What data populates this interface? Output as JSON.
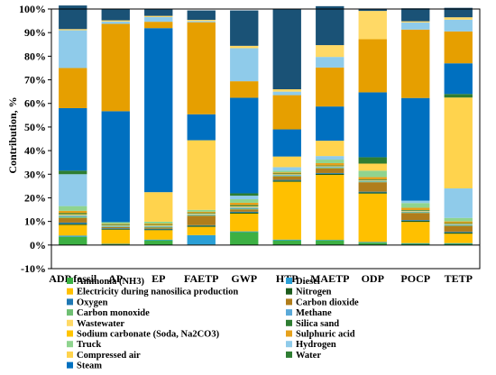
{
  "chart_data": {
    "type": "bar",
    "stacked": true,
    "ylabel": "Contribution, %",
    "ylim": [
      -10,
      100
    ],
    "yticks": [
      -10,
      0,
      10,
      20,
      30,
      40,
      50,
      60,
      70,
      80,
      90,
      100
    ],
    "ytick_labels": [
      "-10%",
      "0%",
      "10%",
      "20%",
      "30%",
      "40%",
      "50%",
      "60%",
      "70%",
      "80%",
      "90%",
      "100%"
    ],
    "grid": false,
    "legend_position": "bottom",
    "categories": [
      "ADP fossil",
      "AP",
      "EP",
      "FAETP",
      "GWP",
      "HTP",
      "MAETP",
      "ODP",
      "POCP",
      "TETP"
    ],
    "series": [
      {
        "name": "Ammonia (NH3)",
        "color": "#3cb043",
        "values": [
          3.5,
          0.3,
          2,
          0.2,
          5.5,
          2,
          2,
          1,
          0.5,
          0.5
        ]
      },
      {
        "name": "Diesel",
        "color": "#2a9fd6",
        "values": [
          0.5,
          0.2,
          0.3,
          4,
          0.3,
          0.3,
          0.2,
          0.3,
          0.3,
          0.3
        ]
      },
      {
        "name": "Electricity during nanosilica production",
        "color": "#ffc000",
        "values": [
          4.5,
          6,
          4,
          3.5,
          7.5,
          24.5,
          27.5,
          20.5,
          9,
          4
        ]
      },
      {
        "name": "Nitrogen",
        "color": "#1d5c1d",
        "values": [
          0.5,
          0.3,
          0.3,
          0.5,
          0.5,
          0.5,
          0.5,
          0.5,
          0.5,
          0.5
        ]
      },
      {
        "name": "Oxygen",
        "color": "#1f78b4",
        "values": [
          0.5,
          0.3,
          0.3,
          0.2,
          0.3,
          0.3,
          0.3,
          0.3,
          0.3,
          0.3
        ]
      },
      {
        "name": "Carbon dioxide",
        "color": "#b07d1b",
        "values": [
          2,
          0.5,
          0.5,
          4,
          1,
          1.5,
          2,
          4,
          3,
          2.5
        ]
      },
      {
        "name": "Carbon monoxide",
        "color": "#6fbf73",
        "values": [
          0.5,
          0.2,
          0.3,
          0.3,
          0.3,
          0.3,
          0.3,
          0.3,
          0.3,
          0.3
        ]
      },
      {
        "name": "Methane",
        "color": "#5aa9d8",
        "values": [
          0.5,
          0.3,
          0.3,
          0.3,
          0.5,
          0.3,
          0.3,
          0.3,
          0.3,
          0.3
        ]
      },
      {
        "name": "Wastewater",
        "color": "#ffd966",
        "values": [
          0.5,
          0.3,
          0.3,
          0.3,
          0.5,
          0.3,
          0.3,
          0.3,
          0.3,
          0.3
        ]
      },
      {
        "name": "Silica sand",
        "color": "#2e7d32",
        "values": [
          0.5,
          0.3,
          0.3,
          0.3,
          0.5,
          0.3,
          0.3,
          0.3,
          0.3,
          0.3
        ]
      },
      {
        "name": "Sodium carbonate (Soda, Na2CO3)",
        "color": "#ffc400",
        "values": [
          0,
          0,
          0,
          0,
          0,
          0,
          0,
          0,
          0,
          0
        ]
      },
      {
        "name": "Sulphuric acid",
        "color": "#e6a11c",
        "values": [
          1,
          0.3,
          0.5,
          0.5,
          1,
          0.5,
          1,
          1,
          1,
          0.7
        ]
      },
      {
        "name": "Truck",
        "color": "#8fd48f",
        "values": [
          2,
          0.7,
          0.8,
          0.8,
          1.5,
          0.7,
          1.5,
          2.7,
          2,
          1.5
        ]
      },
      {
        "name": "Hydrogen",
        "color": "#8fcbea",
        "values": [
          13.5,
          0,
          0,
          0,
          1.5,
          1.5,
          1.5,
          0,
          1,
          12.5
        ]
      },
      {
        "name": "Compressed air",
        "color": "#ffd34d",
        "values": [
          0,
          0,
          12.5,
          29.5,
          0,
          4.5,
          6.5,
          3,
          0,
          38.5
        ]
      },
      {
        "name": "Water",
        "color": "#2e7d32",
        "values": [
          1.5,
          0,
          0,
          0,
          1,
          0,
          0,
          2.7,
          0,
          1.5
        ]
      },
      {
        "name": "Steam",
        "color": "#0070c0",
        "values": [
          26.5,
          47,
          69.5,
          11,
          40.5,
          11.5,
          14.5,
          27.5,
          43.5,
          13
        ]
      },
      {
        "name": "",
        "color": "#e69f00",
        "values": [
          17,
          37,
          2.7,
          39,
          7,
          14.5,
          16.5,
          22.5,
          29,
          13.5
        ]
      },
      {
        "name": "",
        "color": "#8fcbea",
        "values": [
          16,
          1,
          2,
          0.5,
          14,
          1.5,
          4.5,
          0,
          3,
          5
        ]
      },
      {
        "name": "",
        "color": "#ffd966",
        "values": [
          0.5,
          0.5,
          0.5,
          0.5,
          1,
          1,
          5,
          12,
          0.5,
          1
        ]
      },
      {
        "name": "",
        "color": "#1a5276",
        "values": [
          10,
          5,
          3,
          4,
          15,
          34,
          16.5,
          1,
          5.5,
          4
        ]
      }
    ]
  }
}
